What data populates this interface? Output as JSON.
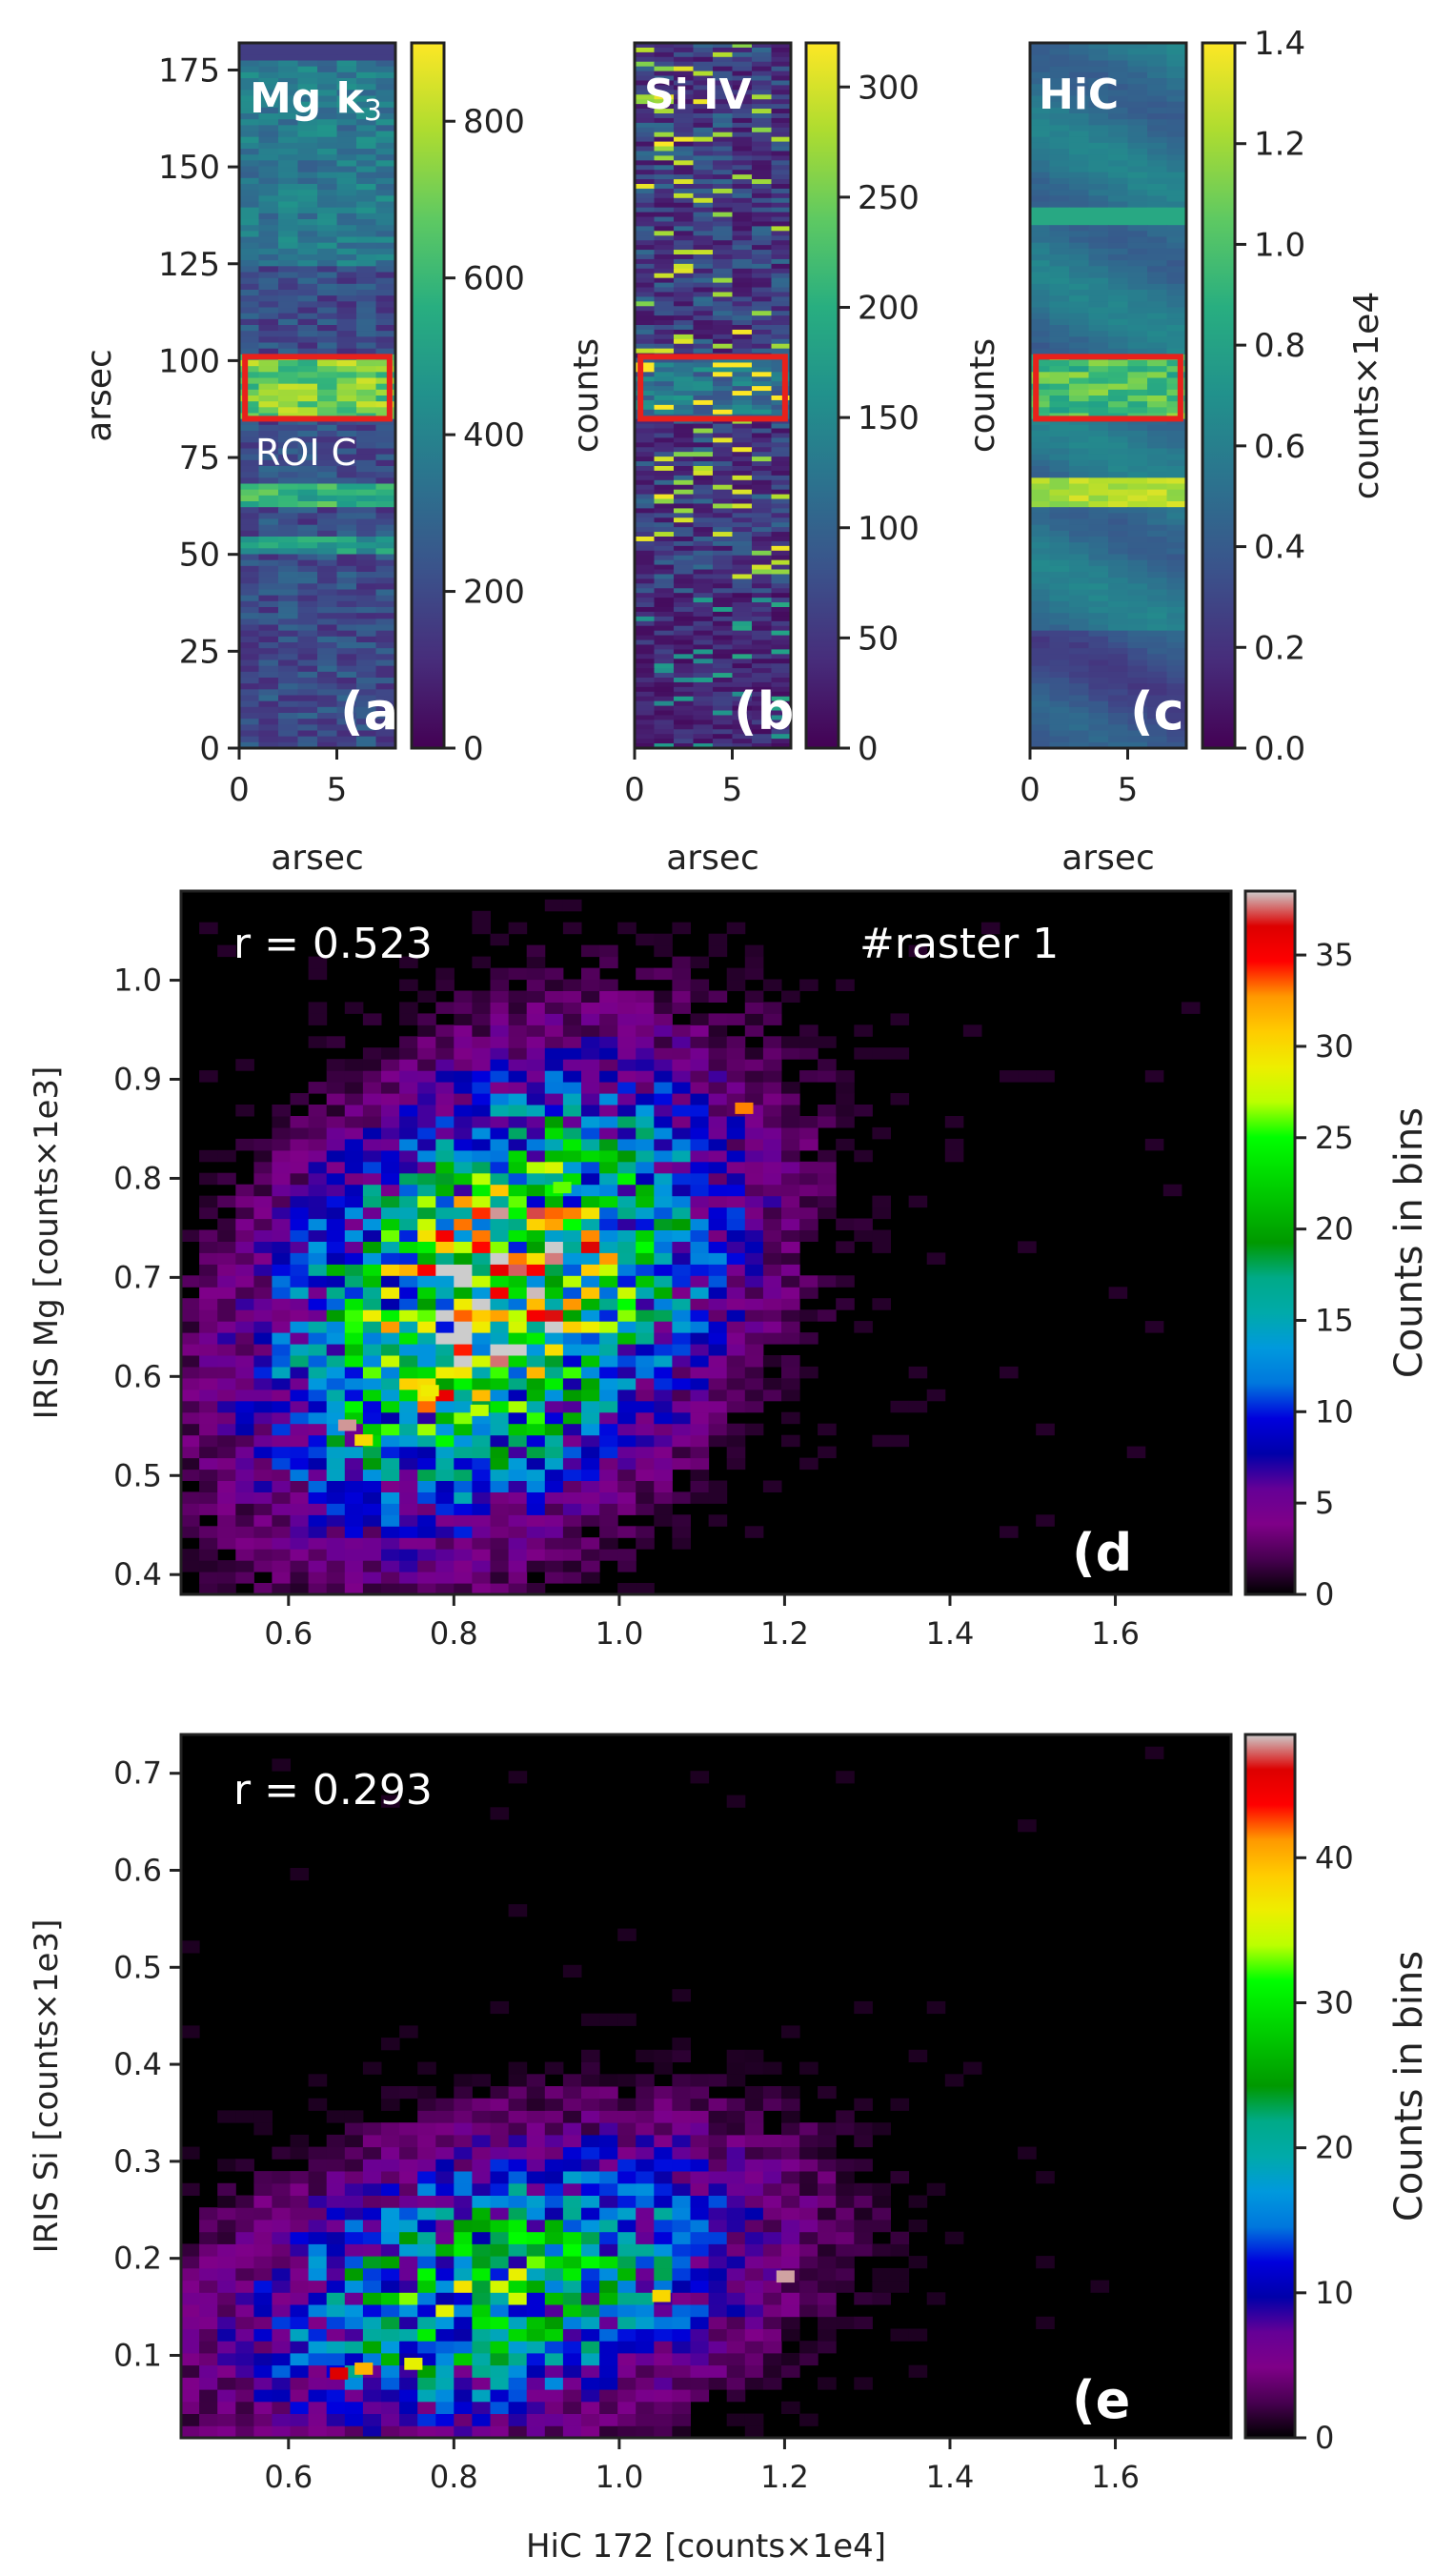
{
  "colors": {
    "frame": "#222222",
    "roi_box": "#e8211b",
    "label_white": "#ffffff",
    "hist_background": "#000000"
  },
  "chart_data": [
    {
      "id": "a",
      "type": "heatmap",
      "colormap": "viridis",
      "panel_text": [
        "Mg k",
        "3"
      ],
      "panel_letter": "(a",
      "roi_label": "ROI C",
      "roi": {
        "x": [
          0.3,
          7.7
        ],
        "y": [
          85,
          101
        ]
      },
      "xlabel": "arsec",
      "ylabel": "arsec",
      "xlim": [
        0,
        8
      ],
      "ylim": [
        0,
        182
      ],
      "xticks": [
        0,
        5
      ],
      "yticks": [
        0,
        25,
        50,
        75,
        100,
        125,
        150,
        175
      ],
      "colorbar": {
        "range": [
          0,
          900
        ],
        "ticks": [
          0,
          200,
          400,
          600,
          800
        ],
        "label": "counts"
      },
      "bright_bands": [
        {
          "y": [
            85,
            101
          ],
          "level": 0.85
        },
        {
          "y": [
            62,
            68
          ],
          "level": 0.7
        },
        {
          "y": [
            50,
            55
          ],
          "level": 0.6
        }
      ]
    },
    {
      "id": "b",
      "type": "heatmap",
      "colormap": "viridis",
      "panel_text": "Si IV",
      "panel_letter": "(b",
      "roi": {
        "x": [
          0.3,
          7.7
        ],
        "y": [
          85,
          101
        ]
      },
      "xlabel": "arsec",
      "xlim": [
        0,
        8
      ],
      "ylim": [
        0,
        182
      ],
      "xticks": [
        0,
        5
      ],
      "colorbar": {
        "range": [
          0,
          320
        ],
        "ticks": [
          0,
          50,
          100,
          150,
          200,
          250,
          300
        ],
        "label": "counts"
      }
    },
    {
      "id": "c",
      "type": "heatmap",
      "colormap": "viridis",
      "panel_text": "HiC",
      "panel_letter": "(c",
      "roi": {
        "x": [
          0.3,
          7.7
        ],
        "y": [
          85,
          101
        ]
      },
      "xlabel": "arsec",
      "xlim": [
        0,
        8
      ],
      "ylim": [
        0,
        182
      ],
      "xticks": [
        0,
        5
      ],
      "colorbar": {
        "range": [
          0,
          1.4
        ],
        "ticks": [
          "0.0",
          "0.2",
          "0.4",
          "0.6",
          "0.8",
          "1.0",
          "1.2",
          "1.4"
        ],
        "label": "counts×1e4"
      }
    },
    {
      "id": "d",
      "type": "heatmap",
      "colormap": "nipy_spectral",
      "annotation": "r = 0.523",
      "annotation2": "#raster 1",
      "panel_letter": "(d",
      "xlabel": "",
      "ylabel": "IRIS Mg [counts×1e3]",
      "xlim": [
        0.47,
        1.74
      ],
      "ylim": [
        0.38,
        1.09
      ],
      "xticks": [
        "0.6",
        "0.8",
        "1.0",
        "1.2",
        "1.4",
        "1.6"
      ],
      "yticks": [
        "0.4",
        "0.5",
        "0.6",
        "0.7",
        "0.8",
        "0.9",
        "1.0"
      ],
      "colorbar": {
        "range": [
          0,
          38.5
        ],
        "ticks": [
          0,
          5,
          10,
          15,
          20,
          25,
          30,
          35
        ],
        "label": "Counts in bins"
      },
      "bin_size": [
        0.022,
        0.0115
      ],
      "density": {
        "center": [
          0.85,
          0.68
        ],
        "spread": [
          0.17,
          0.13
        ],
        "peak": 34
      },
      "peaks": [
        {
          "x": 0.66,
          "y": 0.545,
          "count": 38
        },
        {
          "x": 0.82,
          "y": 0.56,
          "count": 27
        },
        {
          "x": 0.92,
          "y": 0.785,
          "count": 26
        },
        {
          "x": 0.68,
          "y": 0.53,
          "count": 30
        },
        {
          "x": 1.14,
          "y": 0.865,
          "count": 33
        },
        {
          "x": 0.76,
          "y": 0.58,
          "count": 29
        }
      ]
    },
    {
      "id": "e",
      "type": "heatmap",
      "colormap": "nipy_spectral",
      "annotation": "r = 0.293",
      "panel_letter": "(e",
      "xlabel": "HiC 172 [counts×1e4]",
      "ylabel": "IRIS Si [counts×1e3]",
      "xlim": [
        0.47,
        1.74
      ],
      "ylim": [
        0.015,
        0.74
      ],
      "xticks": [
        "0.6",
        "0.8",
        "1.0",
        "1.2",
        "1.4",
        "1.6"
      ],
      "yticks": [
        "0.1",
        "0.2",
        "0.3",
        "0.4",
        "0.5",
        "0.6",
        "0.7"
      ],
      "colorbar": {
        "range": [
          0,
          48.5
        ],
        "ticks": [
          0,
          10,
          20,
          30,
          40
        ],
        "label": "Counts in bins"
      },
      "bin_size": [
        0.022,
        0.0125
      ],
      "density": {
        "center": [
          0.85,
          0.17
        ],
        "spread": [
          0.2,
          0.09
        ],
        "peak": 28
      },
      "peaks": [
        {
          "x": 0.65,
          "y": 0.075,
          "count": 46
        },
        {
          "x": 0.68,
          "y": 0.08,
          "count": 40
        },
        {
          "x": 1.04,
          "y": 0.155,
          "count": 38
        },
        {
          "x": 1.19,
          "y": 0.175,
          "count": 48
        },
        {
          "x": 0.74,
          "y": 0.085,
          "count": 36
        }
      ]
    }
  ]
}
